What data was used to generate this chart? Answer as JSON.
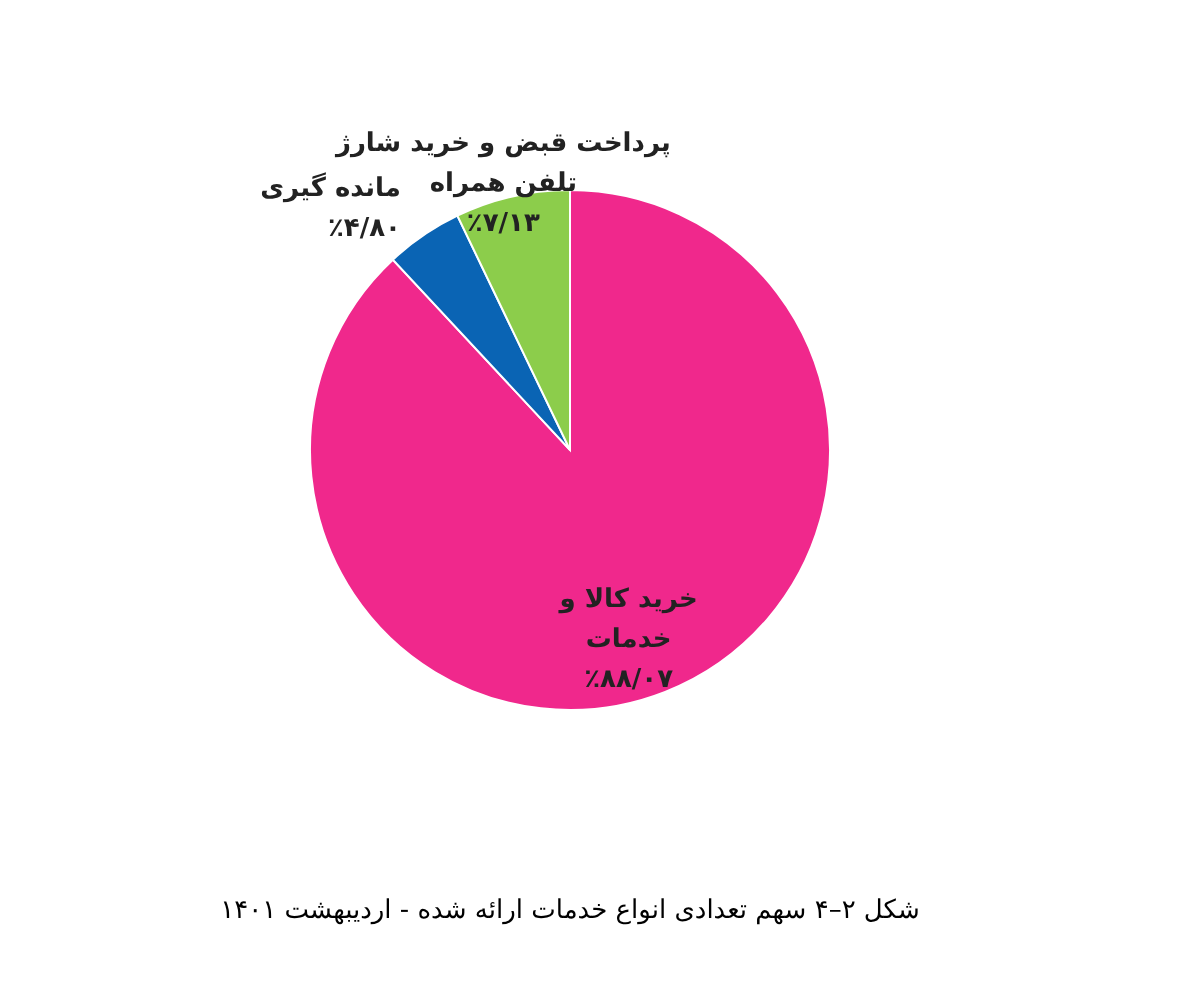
{
  "chart_data": {
    "type": "pie",
    "title": "شکل ۲–۴ سهم تعدادی انواع خدمات ارائه شده - اردیبهشت ۱۴۰۱",
    "categories": [
      "خرید کالا و\nخدمات",
      "مانده گیری",
      "پرداخت قبض و خرید شارژ\nتلفن همراه"
    ],
    "values": [
      88.07,
      4.8,
      7.13
    ],
    "value_labels": [
      "٪۸۸/۰۷",
      "٪۴/۸۰",
      "٪۷/۱۳"
    ],
    "colors": [
      "#f0288c",
      "#0a64b4",
      "#8ccd4b"
    ],
    "legend": false
  }
}
